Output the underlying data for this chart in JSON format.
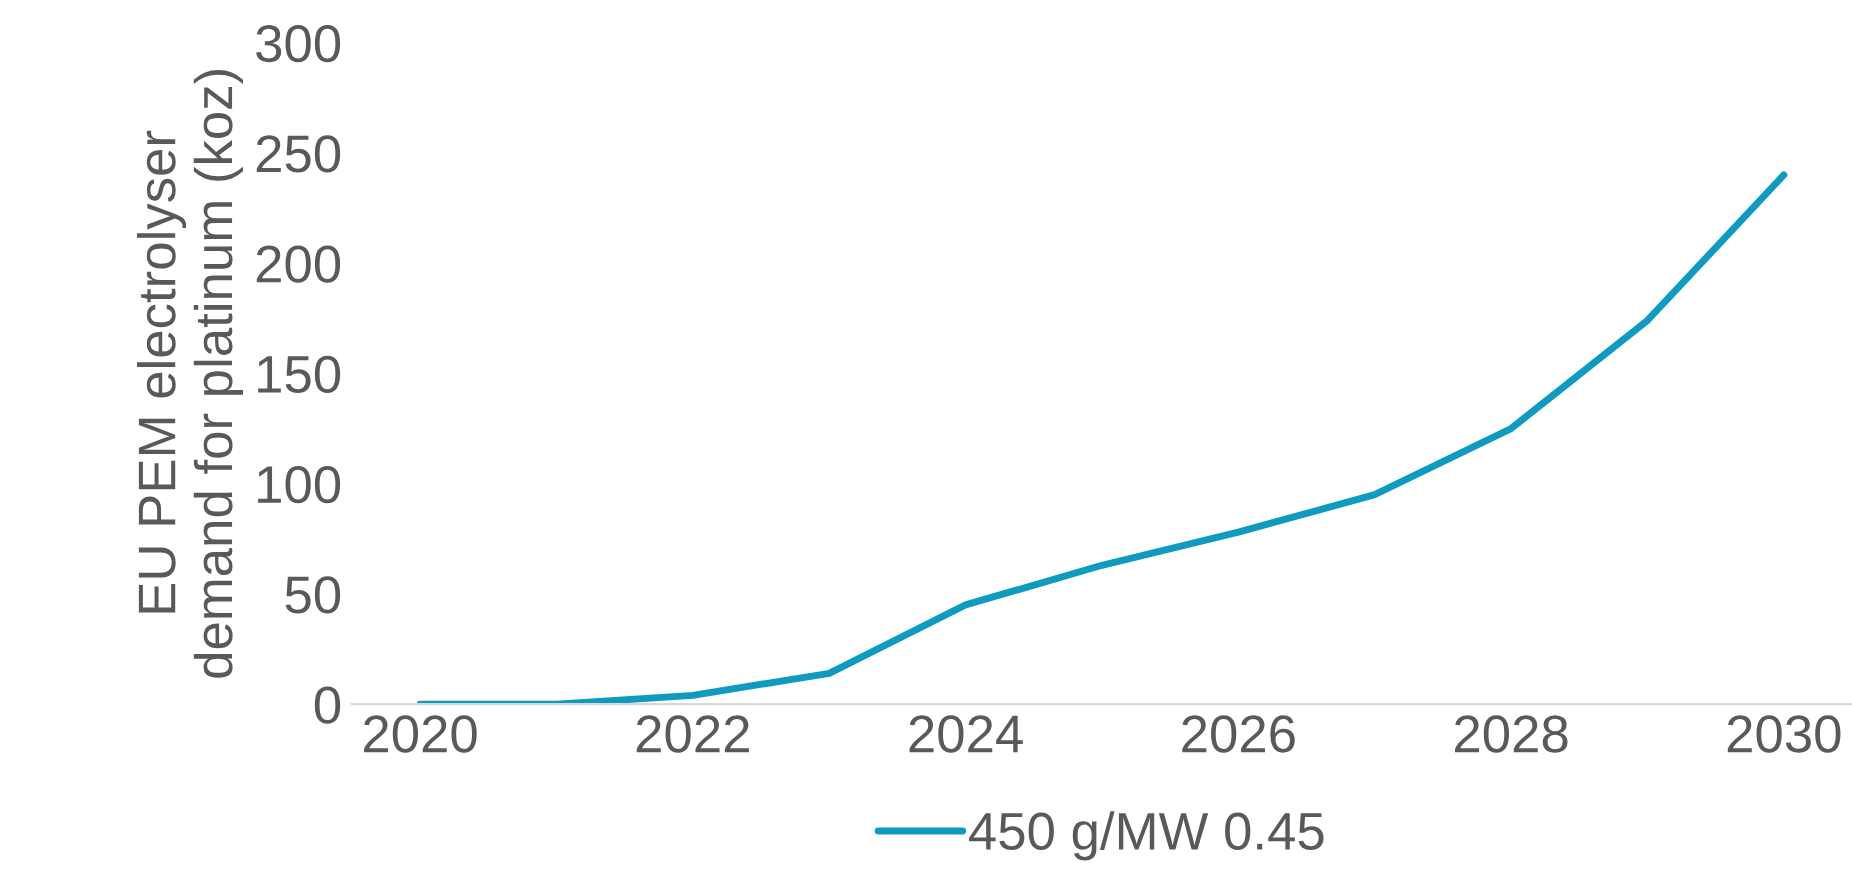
{
  "chart_data": {
    "type": "line",
    "ylabel": "EU PEM electrolyser\ndemand for platinum (koz)",
    "x": [
      2020,
      2021,
      2022,
      2023,
      2024,
      2025,
      2026,
      2027,
      2028,
      2029,
      2030
    ],
    "series": [
      {
        "name": "450 g/MW 0.45",
        "color": "#0f9bc0",
        "values": [
          0,
          0,
          4,
          14,
          45,
          63,
          78,
          95,
          125,
          174,
          240
        ]
      }
    ],
    "xlim": [
      2019.5,
      2030.5
    ],
    "xticks": [
      2020,
      2022,
      2024,
      2026,
      2028,
      2030
    ],
    "ylim": [
      0,
      300
    ],
    "yticks": [
      0,
      50,
      100,
      150,
      200,
      250,
      300
    ],
    "grid": false,
    "legend": "bottom",
    "marker": "none",
    "line_style": "solid"
  }
}
